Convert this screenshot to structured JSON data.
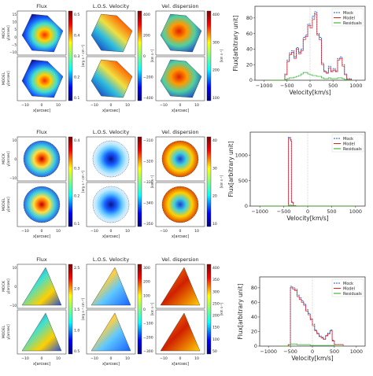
{
  "rows": [
    {
      "panels": [
        {
          "title": "Flux",
          "cbar_ticks": [
            "0.5",
            "0.4",
            "0.3",
            "0.2",
            "0.1"
          ],
          "cbar_label": "[erg s⁻¹ cm⁻²]",
          "cmap": "jet"
        },
        {
          "title": "L.O.S. Velocity",
          "cbar_ticks": [
            "400",
            "200",
            "0",
            "−200",
            "−400"
          ],
          "cbar_label": "[km s⁻¹]",
          "cmap": "jet"
        },
        {
          "title": "Vel. dispersion",
          "cbar_ticks": [
            "400",
            "300",
            "200",
            "100"
          ],
          "cbar_label": "[km s⁻¹]",
          "cmap": "jet"
        }
      ],
      "mock_label": "MOCK",
      "model_label": "MODEL",
      "yaxis_label": "y[arcsec]",
      "xaxis_label": "x[arcsec]",
      "xticks": [
        "−10",
        "0",
        "10"
      ],
      "yticks": [
        "15",
        "10",
        "5",
        "0",
        "−5",
        "−10"
      ]
    },
    {
      "panels": [
        {
          "title": "Flux",
          "cbar_ticks": [
            "0.4",
            "0.3",
            "0.2",
            "0.1"
          ],
          "cbar_label": "[erg s⁻¹ cm⁻²]",
          "cmap": "jet"
        },
        {
          "title": "L.O.S. Velocity",
          "cbar_ticks": [
            "−310",
            "−320",
            "−330",
            "−340",
            "−350"
          ],
          "cbar_label": "[km s⁻¹]",
          "cmap": "jet"
        },
        {
          "title": "Vel. dispersion",
          "cbar_ticks": [
            "40",
            "30",
            "20",
            "10"
          ],
          "cbar_label": "[km s⁻¹]",
          "cmap": "jet"
        }
      ],
      "mock_label": "MOCK",
      "model_label": "MODEL",
      "yaxis_label": "y[arcsec]",
      "xaxis_label": "x[arcsec]",
      "xticks": [
        "−10",
        "0",
        "10"
      ],
      "yticks": [
        "10",
        "0",
        "−10"
      ]
    },
    {
      "panels": [
        {
          "title": "Flux",
          "cbar_ticks": [
            "2.5",
            "2.0",
            "1.5",
            "1.0",
            "0.5"
          ],
          "cbar_label": "[erg s⁻¹ cm⁻²]",
          "cmap": "jet"
        },
        {
          "title": "L.O.S. Velocity",
          "cbar_ticks": [
            "300",
            "200",
            "100",
            "0",
            "−100",
            "−200",
            "−300"
          ],
          "cbar_label": "[km s⁻¹]",
          "cmap": "jet"
        },
        {
          "title": "Vel. dispersion",
          "cbar_ticks": [
            "400",
            "350",
            "300",
            "250",
            "200",
            "150",
            "100",
            "50"
          ],
          "cbar_label": "[km s⁻¹]",
          "cmap": "jet"
        }
      ],
      "mock_label": "MOCK",
      "model_label": "MODEL",
      "yaxis_label": "y[arcsec]",
      "xaxis_label": "x[arcsec]",
      "xticks": [
        "−10",
        "0",
        "10"
      ],
      "yticks": [
        "10",
        "0",
        "−10"
      ]
    }
  ],
  "chart_data": [
    {
      "type": "line",
      "xlabel": "Velocity[km/s]",
      "ylabel": "Flux[arbitrary unit]",
      "xlim": [
        -1200,
        1200
      ],
      "ylim": [
        0,
        95
      ],
      "xticks": [
        -1000,
        -500,
        0,
        500,
        1000
      ],
      "yticks": [
        0,
        20,
        40,
        60,
        80
      ],
      "legend": "top-right",
      "legend_entries": [
        "Mock",
        "Model",
        "Residuals"
      ],
      "series_colors": [
        "#2255dd",
        "#dd2222",
        "#22aa22"
      ],
      "x": [
        -900,
        -600,
        -550,
        -500,
        -450,
        -400,
        -350,
        -300,
        -250,
        -200,
        -150,
        -100,
        -50,
        0,
        50,
        100,
        150,
        200,
        250,
        300,
        350,
        400,
        450,
        500,
        550,
        600,
        650,
        700,
        750,
        800,
        900
      ],
      "series": [
        {
          "values": [
            0,
            0,
            8,
            26,
            35,
            38,
            30,
            42,
            36,
            40,
            55,
            58,
            72,
            70,
            82,
            88,
            60,
            55,
            22,
            12,
            10,
            18,
            12,
            15,
            12,
            28,
            30,
            20,
            8,
            2,
            0
          ]
        },
        {
          "values": [
            0,
            0,
            7,
            24,
            33,
            36,
            28,
            40,
            34,
            38,
            52,
            56,
            70,
            67,
            78,
            85,
            58,
            52,
            20,
            11,
            9,
            16,
            11,
            13,
            11,
            26,
            28,
            18,
            7,
            1,
            0
          ]
        },
        {
          "values": [
            0,
            0,
            1,
            2,
            3,
            3,
            4,
            5,
            6,
            8,
            10,
            10,
            8,
            7,
            6,
            6,
            5,
            5,
            3,
            2,
            2,
            3,
            2,
            2,
            2,
            3,
            3,
            2,
            1,
            0,
            0
          ]
        }
      ]
    },
    {
      "type": "line",
      "xlabel": "Velocity[km/s]",
      "ylabel": "Flux[arbitrary unit]",
      "xlim": [
        -1200,
        1200
      ],
      "ylim": [
        0,
        1450
      ],
      "xticks": [
        -1000,
        -500,
        0,
        500,
        1000
      ],
      "yticks": [
        0,
        500,
        1000
      ],
      "legend": "top-right",
      "legend_entries": [
        "Mock",
        "Model",
        "Residuals"
      ],
      "series_colors": [
        "#2255dd",
        "#dd2222",
        "#22aa22"
      ],
      "x": [
        -1000,
        -450,
        -400,
        -360,
        -340,
        -300,
        -250,
        1000
      ],
      "series": [
        {
          "values": [
            0,
            0,
            1350,
            1300,
            80,
            10,
            0,
            0
          ]
        },
        {
          "values": [
            0,
            0,
            1330,
            1280,
            70,
            8,
            0,
            0
          ]
        },
        {
          "values": [
            0,
            0,
            15,
            20,
            10,
            2,
            0,
            0
          ]
        }
      ]
    },
    {
      "type": "line",
      "xlabel": "Velocity[km/s]",
      "ylabel": "Flux[arbitrary unit]",
      "xlim": [
        -1200,
        1200
      ],
      "ylim": [
        0,
        95
      ],
      "xticks": [
        -1000,
        -500,
        0,
        500,
        1000
      ],
      "yticks": [
        0,
        20,
        40,
        60,
        80
      ],
      "legend": "top-right",
      "legend_entries": [
        "Mock",
        "Model",
        "Residuals"
      ],
      "series_colors": [
        "#2255dd",
        "#dd2222",
        "#22aa22"
      ],
      "x": [
        -700,
        -550,
        -500,
        -450,
        -400,
        -350,
        -300,
        -250,
        -200,
        -150,
        -100,
        -50,
        0,
        50,
        100,
        150,
        200,
        250,
        300,
        350,
        400,
        450,
        500,
        700
      ],
      "series": [
        {
          "values": [
            0,
            2,
            82,
            80,
            78,
            70,
            66,
            62,
            58,
            50,
            45,
            38,
            30,
            22,
            18,
            14,
            12,
            10,
            15,
            18,
            22,
            8,
            2,
            0
          ]
        },
        {
          "values": [
            0,
            2,
            80,
            78,
            76,
            68,
            64,
            60,
            56,
            48,
            43,
            36,
            28,
            21,
            17,
            13,
            11,
            9,
            14,
            17,
            21,
            7,
            2,
            0
          ]
        },
        {
          "values": [
            0,
            0,
            3,
            3,
            3,
            2,
            2,
            2,
            2,
            2,
            2,
            1,
            1,
            1,
            1,
            1,
            1,
            1,
            1,
            1,
            1,
            1,
            0,
            0
          ]
        }
      ]
    }
  ]
}
